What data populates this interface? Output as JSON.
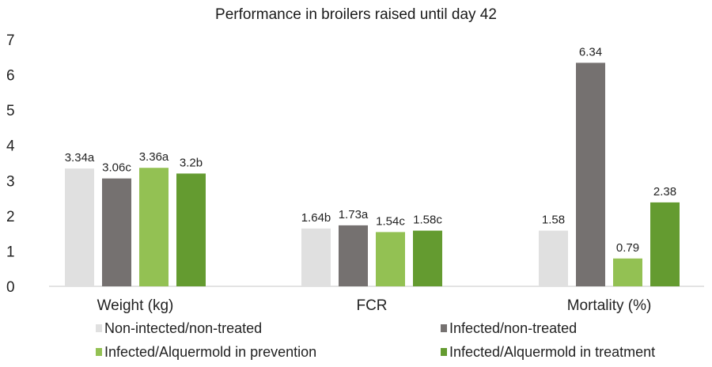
{
  "chart_data": {
    "type": "bar",
    "title": "Performance in broilers raised until day 42",
    "xlabel": "",
    "ylabel": "",
    "ylim": [
      0,
      7
    ],
    "yticks": [
      "0",
      "1",
      "2",
      "3",
      "4",
      "5",
      "6",
      "7"
    ],
    "grid": false,
    "legend_position": "bottom",
    "categories": [
      "Weight (kg)",
      "FCR",
      "Mortality (%)"
    ],
    "series": [
      {
        "name": "Non-intected/non-treated",
        "color": "#e0e0e0",
        "values": [
          3.34,
          1.64,
          1.58
        ],
        "labels": [
          "3.34a",
          "1.64b",
          "1.58"
        ]
      },
      {
        "name": "Infected/non-treated",
        "color": "#757170",
        "values": [
          3.06,
          1.73,
          6.34
        ],
        "labels": [
          "3.06c",
          "1.73a",
          "6.34"
        ]
      },
      {
        "name": "Infected/Alquermold in prevention",
        "color": "#93c153",
        "values": [
          3.36,
          1.54,
          0.79
        ],
        "labels": [
          "3.36a",
          "1.54c",
          "0.79"
        ]
      },
      {
        "name": "Infected/Alquermold in treatment",
        "color": "#649b30",
        "values": [
          3.2,
          1.58,
          2.38
        ],
        "labels": [
          "3.2b",
          "1.58c",
          "2.38"
        ]
      }
    ]
  }
}
